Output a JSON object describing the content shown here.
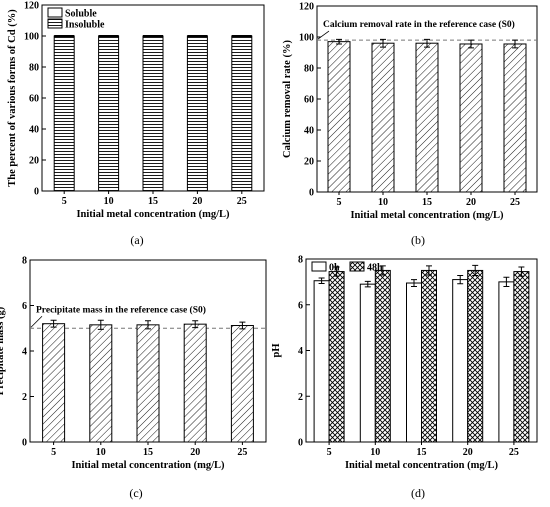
{
  "chart_data": [
    {
      "type": "bar",
      "stacked": true,
      "label": "(a)",
      "title": "",
      "xlabel": "Initial metal concentration (mg/L)",
      "ylabel": "The percent of various forms of Cd (%)",
      "ylim": [
        0,
        120
      ],
      "yticks": [
        0,
        20,
        40,
        60,
        80,
        100,
        120
      ],
      "categories": [
        "5",
        "10",
        "15",
        "20",
        "25"
      ],
      "legend_position": "top-left",
      "series": [
        {
          "name": "Soluble",
          "values": [
            0,
            0,
            0,
            0,
            0
          ]
        },
        {
          "name": "Insoluble",
          "values": [
            100,
            100,
            100,
            100,
            100
          ]
        }
      ]
    },
    {
      "type": "bar",
      "label": "(b)",
      "title": "",
      "xlabel": "Initial metal concentration (mg/L)",
      "ylabel": "Calcium removal rate (%)",
      "ylim": [
        0,
        120
      ],
      "yticks": [
        0,
        20,
        40,
        60,
        80,
        100,
        120
      ],
      "categories": [
        "5",
        "10",
        "15",
        "20",
        "25"
      ],
      "series": [
        {
          "values": [
            97,
            96,
            96,
            95.5,
            95.5
          ],
          "errors": [
            1.5,
            2.5,
            2.5,
            2.5,
            2.5
          ]
        }
      ],
      "reference_line": {
        "value": 98,
        "label": "Calcium removal rate in the reference case (S0)"
      }
    },
    {
      "type": "bar",
      "label": "(c)",
      "title": "",
      "xlabel": "Initial metal concentration (mg/L)",
      "ylabel": "Precipitate mass (g)",
      "ylim": [
        0,
        8
      ],
      "yticks": [
        0,
        2,
        4,
        6,
        8
      ],
      "categories": [
        "5",
        "10",
        "15",
        "20",
        "25"
      ],
      "series": [
        {
          "values": [
            5.2,
            5.15,
            5.15,
            5.18,
            5.12
          ],
          "errors": [
            0.15,
            0.2,
            0.18,
            0.15,
            0.15
          ]
        }
      ],
      "reference_line": {
        "value": 5.0,
        "label": "Precipitate mass in the reference case (S0)"
      }
    },
    {
      "type": "bar",
      "label": "(d)",
      "title": "",
      "xlabel": "Initial metal concentration (mg/L)",
      "ylabel": "pH",
      "ylim": [
        0,
        8
      ],
      "yticks": [
        0,
        2,
        4,
        6,
        8
      ],
      "categories": [
        "5",
        "10",
        "15",
        "20",
        "25"
      ],
      "legend_position": "top-left",
      "series": [
        {
          "name": "0h",
          "values": [
            7.05,
            6.9,
            6.95,
            7.1,
            7.0
          ],
          "errors": [
            0.12,
            0.12,
            0.15,
            0.18,
            0.2
          ]
        },
        {
          "name": "48h",
          "values": [
            7.45,
            7.5,
            7.5,
            7.5,
            7.45
          ],
          "errors": [
            0.2,
            0.2,
            0.2,
            0.22,
            0.2
          ]
        }
      ]
    }
  ]
}
